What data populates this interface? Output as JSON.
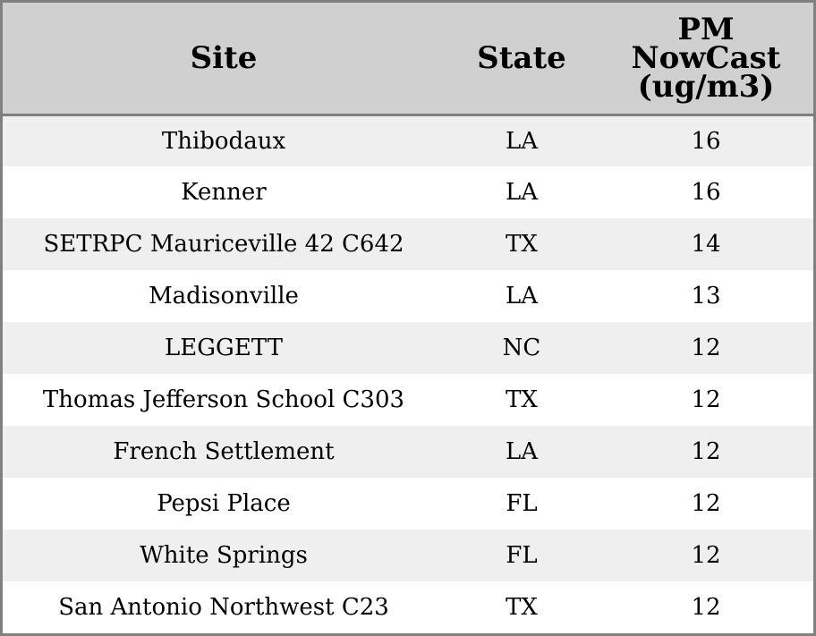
{
  "table": {
    "headers": [
      "Site",
      "State",
      "PM NowCast (ug/m3)"
    ],
    "header_lines_pm": [
      "PM",
      "NowCast",
      "(ug/m3)"
    ],
    "rows": [
      {
        "site": "Thibodaux",
        "state": "LA",
        "pm": "16"
      },
      {
        "site": "Kenner",
        "state": "LA",
        "pm": "16"
      },
      {
        "site": "SETRPC Mauriceville 42 C642",
        "state": "TX",
        "pm": "14"
      },
      {
        "site": "Madisonville",
        "state": "LA",
        "pm": "13"
      },
      {
        "site": "LEGGETT",
        "state": "NC",
        "pm": "12"
      },
      {
        "site": "Thomas Jefferson School C303",
        "state": "TX",
        "pm": "12"
      },
      {
        "site": "French Settlement",
        "state": "LA",
        "pm": "12"
      },
      {
        "site": "Pepsi Place",
        "state": "FL",
        "pm": "12"
      },
      {
        "site": "White Springs",
        "state": "FL",
        "pm": "12"
      },
      {
        "site": "San Antonio Northwest C23",
        "state": "TX",
        "pm": "12"
      }
    ]
  },
  "colors": {
    "header_bg": "#d0d0d0",
    "row_stripe": "#efefef",
    "row_plain": "#ffffff",
    "border": "#808080"
  }
}
